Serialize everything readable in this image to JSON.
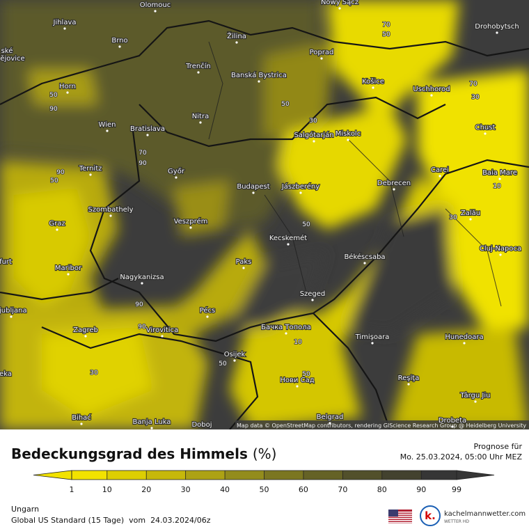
{
  "map": {
    "attribution": "Map data © OpenStreetMap contributors, rendering GIScience Research Group @ Heidelberg University",
    "cities": [
      "Olomouc",
      "Nowy Sącz",
      "Jihlava",
      "Brno",
      "Žilina",
      "Poprad",
      "Drohobytsch",
      "Trenčín",
      "Banská Bystrica",
      "Košice",
      "Uschhorod",
      "Horn",
      "Nitra",
      "Wien",
      "Bratislava",
      "Salgótarján",
      "Miskolc",
      "Chust",
      "Ternitz",
      "Győr",
      "Carei",
      "Baia Mare",
      "Budapest",
      "Jászberény",
      "Debrecen",
      "Szombathely",
      "Zalău",
      "Graz",
      "Veszprém",
      "Kecskemét",
      "Cluj-Napoca",
      "Békéscsaba",
      "Paks",
      "Maribor",
      "Nagykanizsa",
      "Szeged",
      "Ljubljana",
      "Pécs",
      "Бачка Топола",
      "Zagreb",
      "Virovitica",
      "Timişoara",
      "Hunedoara",
      "Osijek",
      "Нови Сад",
      "Reşiţa",
      "Târgu Jiu",
      "Belgrad",
      "Bihać",
      "Banja Luka",
      "Doboj",
      "Drobeta",
      "ské",
      "ějovice",
      "furt",
      "eka"
    ],
    "contour_labels": [
      70,
      50,
      70,
      30,
      50,
      90,
      50,
      90,
      70,
      90,
      30,
      50,
      10,
      50,
      30,
      90,
      30,
      50,
      10,
      90,
      50
    ]
  },
  "legend": {
    "title": "Bedeckungsgrad des Himmels",
    "unit": "(%)",
    "ticks": [
      1,
      10,
      20,
      30,
      40,
      50,
      60,
      70,
      80,
      90,
      99
    ],
    "colors": [
      "#f2e200",
      "#ddce02",
      "#c6b80a",
      "#ada214",
      "#938c1c",
      "#7b7621",
      "#656226",
      "#52502b",
      "#43422f",
      "#363636"
    ]
  },
  "forecast": {
    "label": "Prognose für",
    "time": "Mo. 25.03.2024, 05:00 Uhr MEZ"
  },
  "footer": {
    "region": "Ungarn",
    "model": "Global US Standard (15 Tage)  vom  24.03.2024/06z",
    "brand_logo": "k.",
    "brand": "kachelmannwetter.com",
    "brand_sub": "WETTER HD"
  }
}
